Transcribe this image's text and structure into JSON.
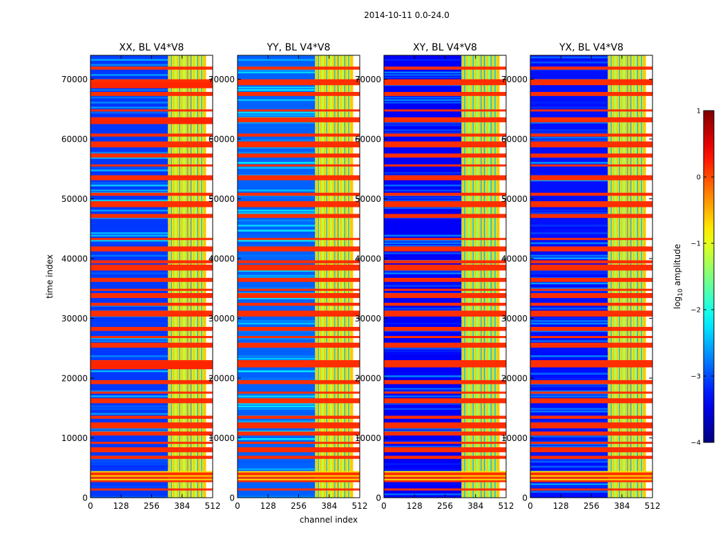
{
  "figure": {
    "suptitle": "2014-10-11 0.0-24.0"
  },
  "colors": {
    "background": "#ffffff",
    "axis": "#000000",
    "colormap": [
      "#00007f",
      "#0000ff",
      "#007fff",
      "#00ffff",
      "#7fff7f",
      "#ffff00",
      "#ff7f00",
      "#ff0000",
      "#7f0000"
    ]
  },
  "chart_data": [
    {
      "type": "heatmap",
      "title": "XX, BL V4*V8",
      "xlabel": "",
      "ylabel": "time index",
      "xlim": [
        0,
        512
      ],
      "ylim": [
        0,
        74000
      ],
      "xticks": [
        0,
        128,
        256,
        384,
        512
      ],
      "xtick_labels": [
        "0",
        "128",
        "256",
        "384",
        "512"
      ],
      "yticks": [
        0,
        10000,
        20000,
        30000,
        40000,
        50000,
        60000,
        70000
      ],
      "ytick_labels": [
        "0",
        "10000",
        "20000",
        "30000",
        "40000",
        "50000",
        "60000",
        "70000"
      ],
      "colorbar_label": "log10 amplitude",
      "value_range": [
        -4,
        1
      ],
      "regions": [
        {
          "x": [
            0,
            325
          ],
          "y": [
            0,
            74000
          ],
          "value": -3.1,
          "note": "low-amplitude background"
        },
        {
          "x": [
            325,
            480
          ],
          "y": [
            0,
            74000
          ],
          "value": -1.2,
          "note": "high-amplitude channel block"
        },
        {
          "x": [
            0,
            512
          ],
          "y": [
            21500,
            22800
          ],
          "value": 0.2,
          "note": "RFI-flagged time rows"
        },
        {
          "x": [
            0,
            512
          ],
          "y": [
            62500,
            63500
          ],
          "value": 0.2,
          "note": "RFI-flagged time rows"
        },
        {
          "x": [
            0,
            512
          ],
          "y": [
            68500,
            69500
          ],
          "value": 0.2,
          "note": "RFI-flagged time rows"
        }
      ]
    },
    {
      "type": "heatmap",
      "title": "YY, BL V4*V8",
      "xlabel": "channel index",
      "ylabel": "",
      "xlim": [
        0,
        512
      ],
      "ylim": [
        0,
        74000
      ],
      "xticks": [
        0,
        128,
        256,
        384,
        512
      ],
      "xtick_labels": [
        "0",
        "128",
        "256",
        "384",
        "512"
      ],
      "yticks": [
        0,
        10000,
        20000,
        30000,
        40000,
        50000,
        60000,
        70000
      ],
      "ytick_labels": [
        "0",
        "10000",
        "20000",
        "30000",
        "40000",
        "50000",
        "60000",
        "70000"
      ],
      "colorbar_label": "log10 amplitude",
      "value_range": [
        -4,
        1
      ],
      "regions": [
        {
          "x": [
            0,
            325
          ],
          "y": [
            0,
            74000
          ],
          "value": -2.9,
          "note": "low-amplitude background"
        },
        {
          "x": [
            325,
            480
          ],
          "y": [
            0,
            74000
          ],
          "value": -1.2,
          "note": "high-amplitude channel block"
        }
      ]
    },
    {
      "type": "heatmap",
      "title": "XY, BL V4*V8",
      "xlabel": "",
      "ylabel": "",
      "xlim": [
        0,
        512
      ],
      "ylim": [
        0,
        74000
      ],
      "xticks": [
        0,
        128,
        256,
        384,
        512
      ],
      "xtick_labels": [
        "0",
        "128",
        "256",
        "384",
        "512"
      ],
      "yticks": [
        0,
        10000,
        20000,
        30000,
        40000,
        50000,
        60000,
        70000
      ],
      "ytick_labels": [
        "0",
        "10000",
        "20000",
        "30000",
        "40000",
        "50000",
        "60000",
        "70000"
      ],
      "colorbar_label": "log10 amplitude",
      "value_range": [
        -4,
        1
      ],
      "regions": [
        {
          "x": [
            0,
            325
          ],
          "y": [
            0,
            74000
          ],
          "value": -3.4,
          "note": "low-amplitude background"
        },
        {
          "x": [
            325,
            480
          ],
          "y": [
            0,
            74000
          ],
          "value": -1.4,
          "note": "high-amplitude channel block"
        }
      ]
    },
    {
      "type": "heatmap",
      "title": "YX, BL V4*V8",
      "xlabel": "",
      "ylabel": "",
      "xlim": [
        0,
        512
      ],
      "ylim": [
        0,
        74000
      ],
      "xticks": [
        0,
        128,
        256,
        384,
        512
      ],
      "xtick_labels": [
        "0",
        "128",
        "256",
        "384",
        "512"
      ],
      "yticks": [
        0,
        10000,
        20000,
        30000,
        40000,
        50000,
        60000,
        70000
      ],
      "ytick_labels": [
        "0",
        "10000",
        "20000",
        "30000",
        "40000",
        "50000",
        "60000",
        "70000"
      ],
      "colorbar_label": "log10 amplitude",
      "value_range": [
        -4,
        1
      ],
      "regions": [
        {
          "x": [
            0,
            325
          ],
          "y": [
            0,
            74000
          ],
          "value": -3.3,
          "note": "low-amplitude background"
        },
        {
          "x": [
            325,
            480
          ],
          "y": [
            0,
            74000
          ],
          "value": -1.3,
          "note": "high-amplitude channel block"
        }
      ]
    }
  ],
  "colorbar": {
    "label_prefix": "log",
    "label_sub": "10",
    "label_suffix": " amplitude",
    "ticks": [
      1,
      0,
      -1,
      -2,
      -3,
      -4
    ],
    "tick_labels": [
      "1",
      "0",
      "−1",
      "−2",
      "−3",
      "−4"
    ],
    "range": [
      -4,
      1
    ]
  },
  "flagged_time_rows": [
    1200,
    2600,
    3300,
    6500,
    7600,
    9000,
    10400,
    11600,
    13200,
    15800,
    17400,
    19000,
    21800,
    22500,
    25100,
    26700,
    27900,
    30300,
    32100,
    33400,
    34600,
    36100,
    38000,
    39200,
    41200,
    43100,
    46800,
    48600,
    50500,
    53100,
    55400,
    56900,
    58600,
    60400,
    62800,
    64600,
    67200,
    69000,
    71600
  ],
  "strong_channel_lines": [
    327,
    345,
    362,
    380,
    398,
    414,
    430,
    452,
    472,
    478
  ]
}
